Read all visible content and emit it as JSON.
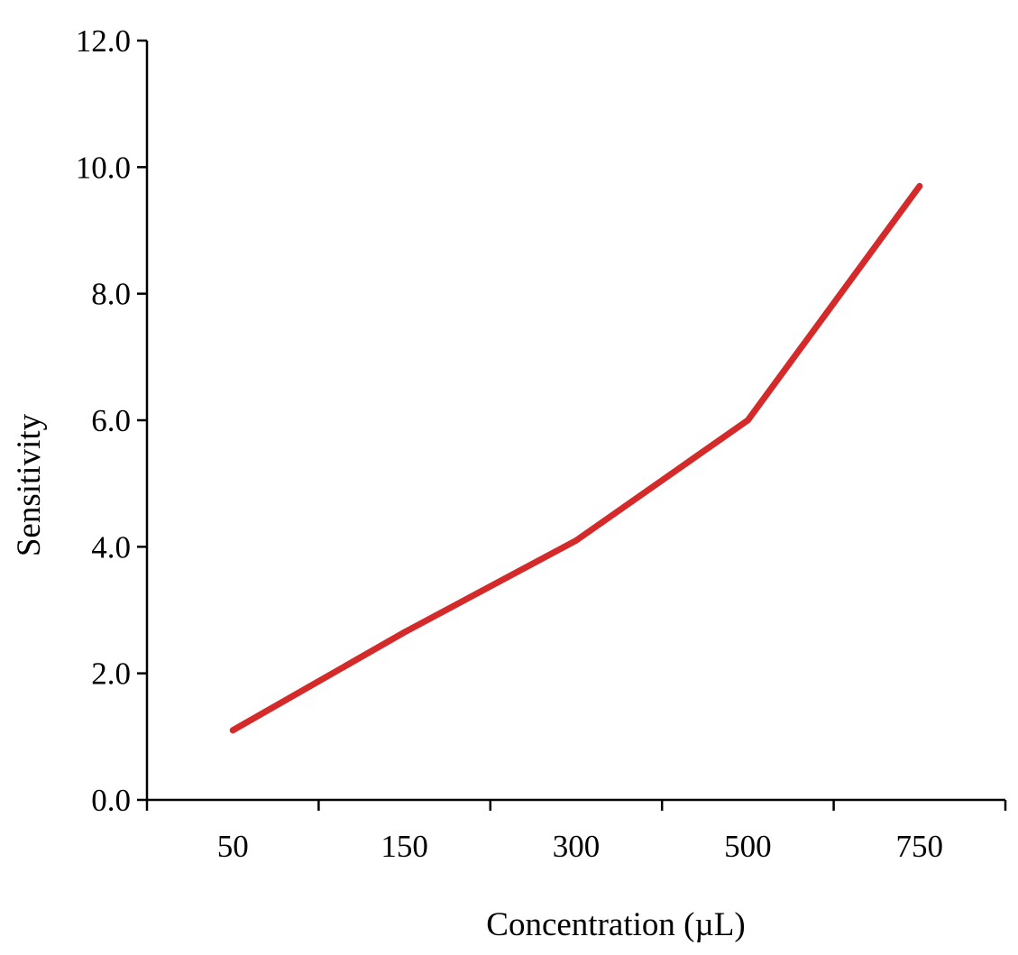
{
  "chart_data": {
    "type": "line",
    "title": "",
    "xlabel": "Concentration (µL)",
    "ylabel": "Sensitivity",
    "categories": [
      "50",
      "150",
      "300",
      "500",
      "750"
    ],
    "y_ticks": [
      "0.0",
      "2.0",
      "4.0",
      "6.0",
      "8.0",
      "10.0",
      "12.0"
    ],
    "ylim": [
      0,
      12
    ],
    "grid": false,
    "legend": "none",
    "series": [
      {
        "color": "#d42a2a",
        "values": [
          1.1,
          2.65,
          4.1,
          6.0,
          9.7
        ]
      }
    ]
  }
}
